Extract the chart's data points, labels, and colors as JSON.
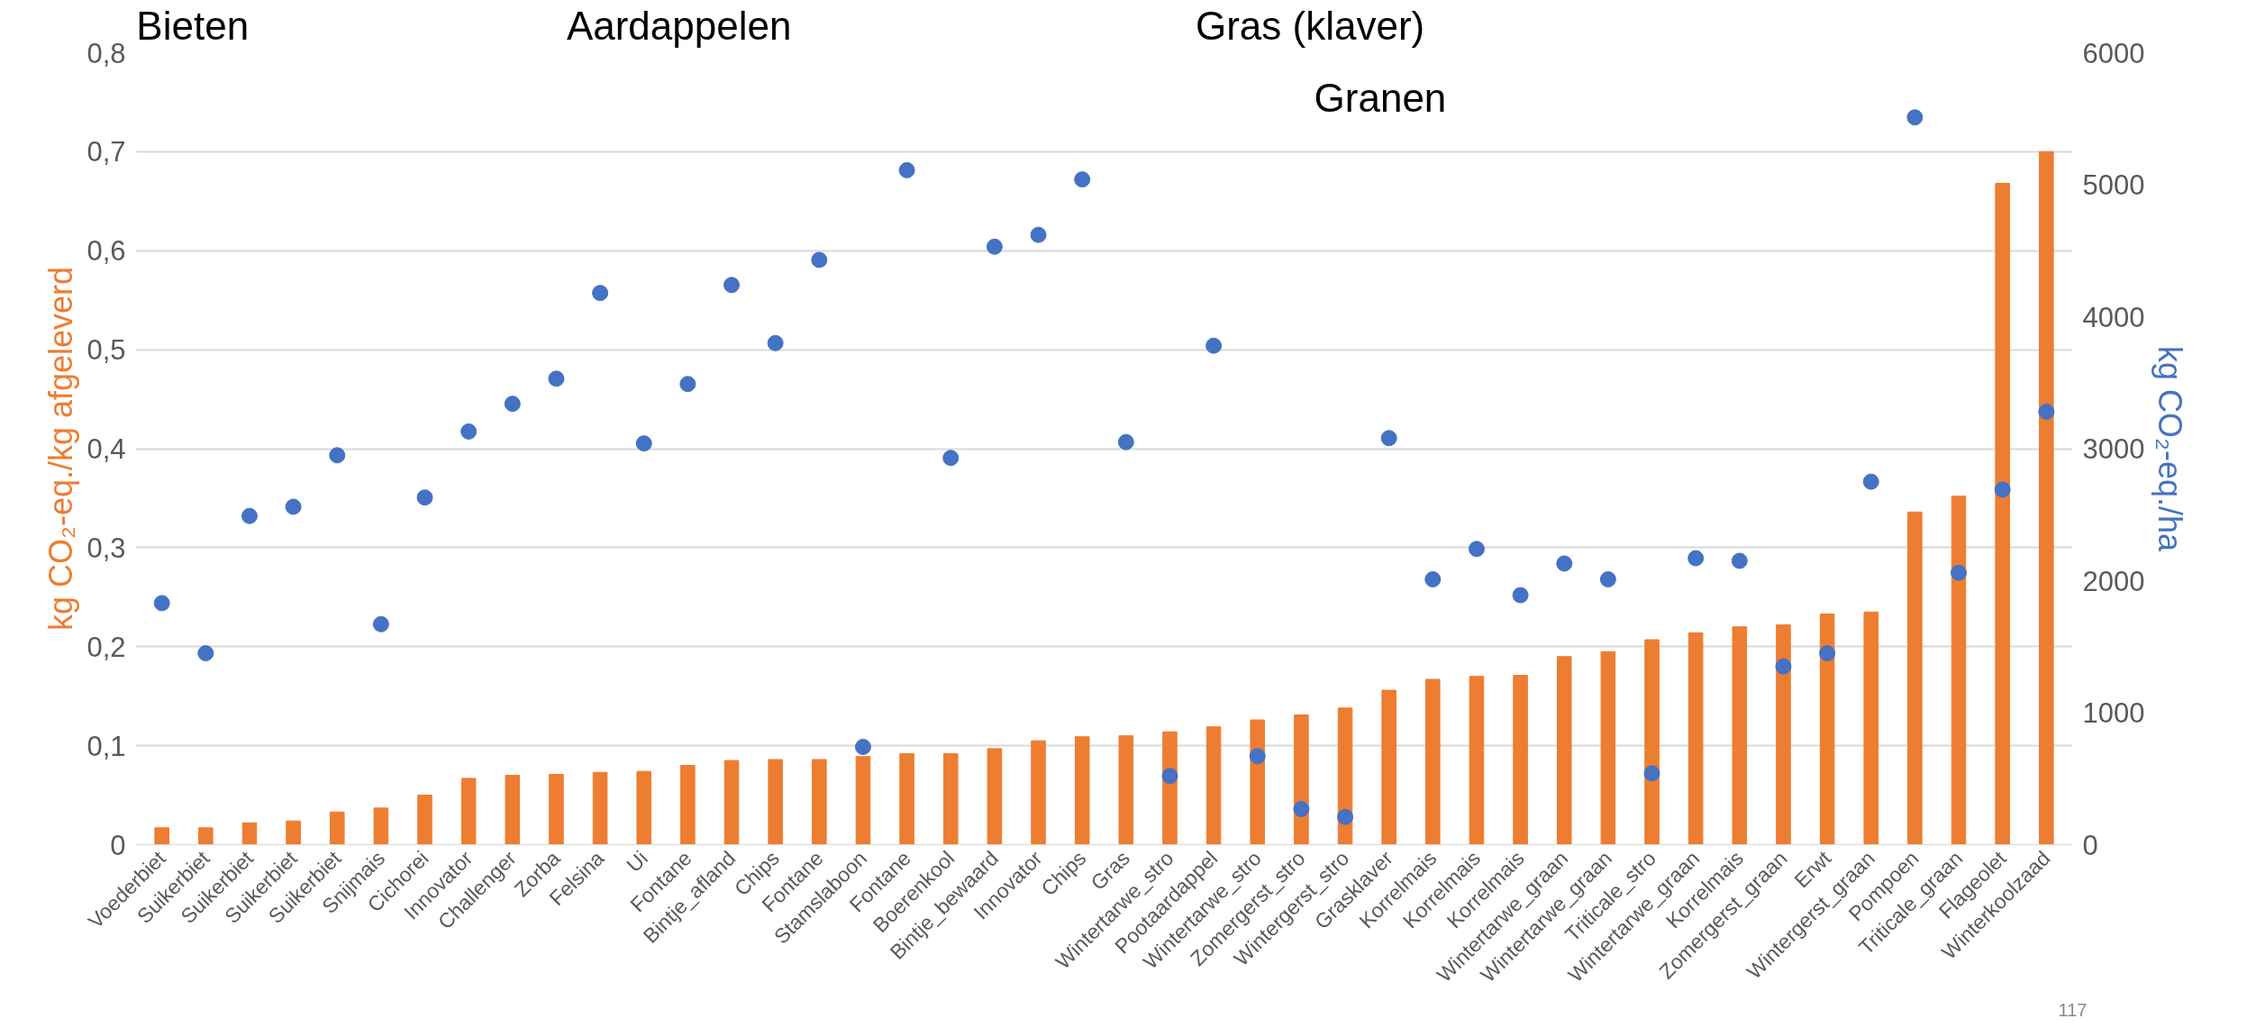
{
  "chart_data": {
    "type": "bar",
    "ylabel": "kg CO₂-eq./kg afgeleverd",
    "y2label": "kg CO₂-eq./ha",
    "categories": [
      "Voederbiet",
      "Suikerbiet",
      "Suikerbiet",
      "Suikerbiet",
      "Suikerbiet",
      "Snijmais",
      "Cichorei",
      "Innovator",
      "Challenger",
      "Zorba",
      "Felsina",
      "Ui",
      "Fontane",
      "Bintje_afland",
      "Chips",
      "Fontane",
      "Stamslaboon",
      "Fontane",
      "Boerenkool",
      "Bintje_bewaard",
      "Innovator",
      "Chips",
      "Gras",
      "Wintertarwe_stro",
      "Pootaardappel",
      "Wintertarwe_stro",
      "Zomergerst_stro",
      "Wintergerst_stro",
      "Grasklaver",
      "Korrelmais",
      "Korrelmais",
      "Korrelmais",
      "Wintertarwe_graan",
      "Wintertarwe_graan",
      "Triticale_stro",
      "Wintertarwe_graan",
      "Korrelmais",
      "Zomergerst_graan",
      "Erwt",
      "Wintergerst_graan",
      "Pompoen",
      "Triticale_graan",
      "Flageolet",
      "Winterkoolzaad"
    ],
    "series": [
      {
        "color": "#ed7d31",
        "values": [
          0.017,
          0.017,
          0.022,
          0.024,
          0.033,
          0.037,
          0.05,
          0.067,
          0.07,
          0.071,
          0.073,
          0.074,
          0.08,
          0.085,
          0.086,
          0.086,
          0.089,
          0.092,
          0.092,
          0.097,
          0.105,
          0.109,
          0.11,
          0.114,
          0.119,
          0.126,
          0.131,
          0.138,
          0.156,
          0.167,
          0.17,
          0.171,
          0.19,
          0.195,
          0.207,
          0.214,
          0.22,
          0.222,
          0.233,
          0.235,
          0.336,
          0.352,
          0.668,
          0.7
        ]
      },
      {
        "type": "scatter",
        "axis": "y2",
        "color": "#4472c4",
        "values": [
          1830,
          1450,
          2490,
          2560,
          2950,
          1670,
          2630,
          3130,
          3340,
          3530,
          4180,
          3040,
          3490,
          4240,
          3800,
          4430,
          740,
          5110,
          2930,
          4530,
          4620,
          5040,
          3050,
          520,
          3780,
          670,
          270,
          210,
          3080,
          2010,
          2240,
          1890,
          2130,
          2010,
          540,
          2170,
          2150,
          1350,
          1450,
          2750,
          5510,
          2060,
          2690,
          3280
        ]
      }
    ],
    "ylim": [
      0,
      0.8
    ],
    "yticks": [
      0,
      {
        "value": 0.1,
        "label": "0,1"
      },
      {
        "value": 0.2,
        "label": "0,2"
      },
      {
        "value": 0.3,
        "label": "0,3"
      },
      {
        "value": 0.4,
        "label": "0,4"
      },
      {
        "value": 0.5,
        "label": "0,5"
      },
      {
        "value": 0.6,
        "label": "0,6"
      },
      {
        "value": 0.7,
        "label": "0,7"
      },
      {
        "value": 0.8,
        "label": "0,8"
      }
    ],
    "y2lim": [
      0,
      6000
    ],
    "y2ticks": [
      0,
      1000,
      2000,
      3000,
      4000,
      5000,
      6000
    ],
    "grid": "y",
    "marker": "circle",
    "annotations": [
      "Bieten",
      "Aardappelen",
      "Gras (klaver)",
      "Granen",
      "117"
    ]
  }
}
